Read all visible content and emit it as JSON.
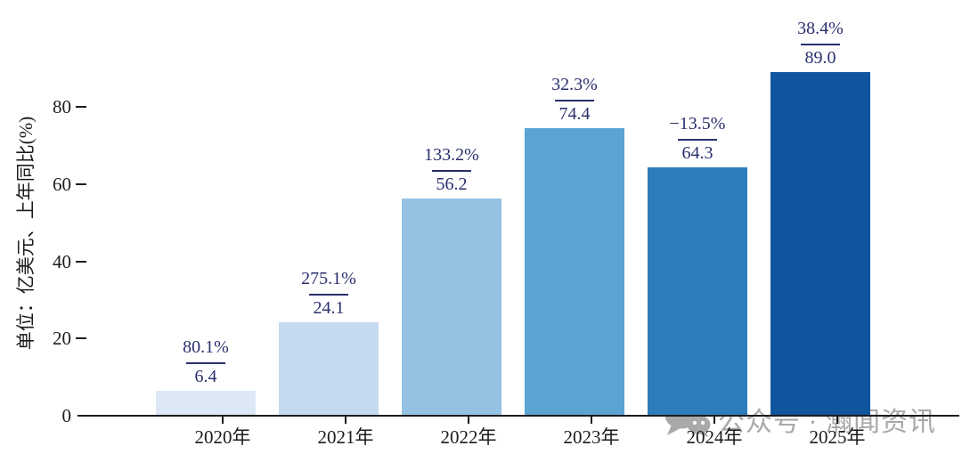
{
  "chart_data": {
    "type": "bar",
    "title": "",
    "categories": [
      "2020年",
      "2021年",
      "2022年",
      "2023年",
      "2024年",
      "2025年"
    ],
    "values": [
      6.4,
      24.1,
      56.2,
      74.4,
      64.3,
      89.0
    ],
    "value_labels": [
      "6.4",
      "24.1",
      "56.2",
      "74.4",
      "64.3",
      "89.0"
    ],
    "yoy_labels": [
      "80.1%",
      "275.1%",
      "133.2%",
      "32.3%",
      "−13.5%",
      "38.4%"
    ],
    "ylabel": "单位：亿美元、上年同比(%)",
    "xlabel": "",
    "yticks": [
      0,
      20,
      40,
      60,
      80
    ],
    "ylim": [
      0,
      95
    ],
    "grid": false,
    "legend": "none",
    "bar_colors": [
      "#dce8f6",
      "#c5d9ef",
      "#95c2e2",
      "#5aa3d2",
      "#2d7cbb",
      "#0f569f"
    ],
    "annotation_color": "#2a2f6e",
    "axis_color": "#1c1c1c"
  },
  "watermark": {
    "text": "公众号 · 瀚闻资讯",
    "icon": "wechat-icon",
    "color": "#a9a9a9"
  }
}
